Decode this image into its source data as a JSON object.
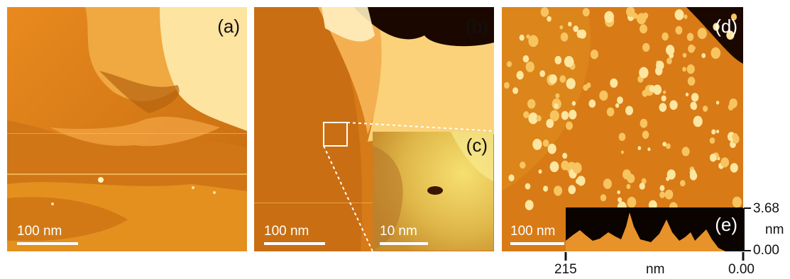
{
  "panels": {
    "a": {
      "label": "(a)",
      "scale_label": "100 nm"
    },
    "b": {
      "label": "(b)",
      "scale_label": "100 nm"
    },
    "c": {
      "label": "(c)",
      "scale_label": "10 nm"
    },
    "d": {
      "label": "(d)",
      "scale_label": "100 nm"
    },
    "e": {
      "label": "(e)"
    }
  },
  "profile": {
    "height_max": "3.68",
    "height_min": "0.00",
    "height_unit": "nm",
    "x_left": "215",
    "x_right": "0.00",
    "x_unit": "nm"
  },
  "colors": {
    "afm_dark": "#7a2e00",
    "afm_mid": "#e08a1e",
    "afm_light": "#fff0b0",
    "profile_fill": "#e8922a"
  }
}
